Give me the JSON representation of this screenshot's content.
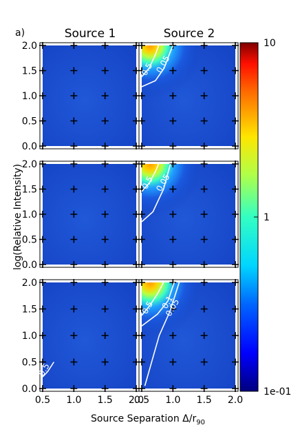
{
  "chart_data": {
    "type": "heatmap",
    "panel_label": "a)",
    "column_titles": [
      "Source 1",
      "Source 2"
    ],
    "xlabel_main": "Source Separation Δ/r",
    "xlabel_sub": "90",
    "ylabel": "log(Relative Intensity)",
    "xlim": [
      0.5,
      2.0
    ],
    "ylim": [
      0.0,
      2.0
    ],
    "x_ticks": [
      "0.5",
      "1.0",
      "1.5",
      "2.0"
    ],
    "y_ticks": [
      "0.0",
      "0.5",
      "1.0",
      "1.5",
      "2.0"
    ],
    "grid_points_x": [
      0.5,
      1.0,
      1.5,
      2.0
    ],
    "grid_points_y": [
      0.0,
      0.5,
      1.0,
      1.5,
      2.0
    ],
    "colorbar": {
      "scale": "log",
      "min": 0.1,
      "max": 10,
      "tick_labels": [
        "10",
        "1",
        "1e-01"
      ],
      "tick_values": [
        10,
        1,
        0.1
      ],
      "colormap": "jet"
    },
    "rows": [
      {
        "source1": {
          "contours": []
        },
        "source2": {
          "hotspot": {
            "x": 0.55,
            "y": 2.0,
            "peak": 4.5
          },
          "contours": [
            {
              "label": "0.5",
              "label_x": 0.62,
              "label_y": 1.5,
              "points": [
                [
                  0.5,
                  1.38
                ],
                [
                  0.62,
                  1.55
                ],
                [
                  0.72,
                  1.82
                ],
                [
                  0.77,
                  2.0
                ]
              ]
            },
            {
              "label": "0.05",
              "label_x": 0.88,
              "label_y": 1.6,
              "points": [
                [
                  0.5,
                  1.18
                ],
                [
                  0.72,
                  1.3
                ],
                [
                  0.86,
                  1.55
                ],
                [
                  0.95,
                  1.85
                ],
                [
                  1.0,
                  2.0
                ]
              ]
            }
          ]
        }
      },
      {
        "source1": {
          "contours": []
        },
        "source2": {
          "hotspot": {
            "x": 0.55,
            "y": 2.0,
            "peak": 4.0
          },
          "contours": [
            {
              "label": "0.5",
              "label_x": 0.63,
              "label_y": 1.6,
              "points": [
                [
                  0.5,
                  1.45
                ],
                [
                  0.62,
                  1.62
                ],
                [
                  0.72,
                  1.85
                ],
                [
                  0.77,
                  2.0
                ]
              ]
            },
            {
              "label": "0.05",
              "label_x": 0.88,
              "label_y": 1.6,
              "points": [
                [
                  0.5,
                  0.85
                ],
                [
                  0.68,
                  1.05
                ],
                [
                  0.85,
                  1.5
                ],
                [
                  0.96,
                  2.0
                ]
              ]
            }
          ]
        }
      },
      {
        "source1": {
          "contours": [
            {
              "label": "0.5",
              "label_x": 0.56,
              "label_y": 0.33,
              "points": [
                [
                  0.5,
                  0.22
                ],
                [
                  0.58,
                  0.32
                ],
                [
                  0.68,
                  0.5
                ]
              ]
            }
          ]
        },
        "source2": {
          "hotspot": {
            "x": 0.55,
            "y": 2.0,
            "peak": 3.5
          },
          "contours": [
            {
              "label": "0.5",
              "label_x": 0.63,
              "label_y": 1.5,
              "points": [
                [
                  0.5,
                  1.38
                ],
                [
                  0.62,
                  1.55
                ],
                [
                  0.75,
                  1.78
                ],
                [
                  0.85,
                  2.0
                ]
              ]
            },
            {
              "label": "0.1",
              "label_x": 0.95,
              "label_y": 1.6,
              "points": [
                [
                  0.5,
                  1.18
                ],
                [
                  0.75,
                  1.4
                ],
                [
                  0.92,
                  1.65
                ],
                [
                  1.02,
                  2.0
                ]
              ]
            },
            {
              "label": "0.05",
              "label_x": 1.03,
              "label_y": 1.5,
              "points": [
                [
                  0.55,
                  0.05
                ],
                [
                  0.78,
                  1.0
                ],
                [
                  0.95,
                  1.45
                ],
                [
                  1.1,
                  2.0
                ]
              ]
            }
          ]
        }
      }
    ]
  }
}
